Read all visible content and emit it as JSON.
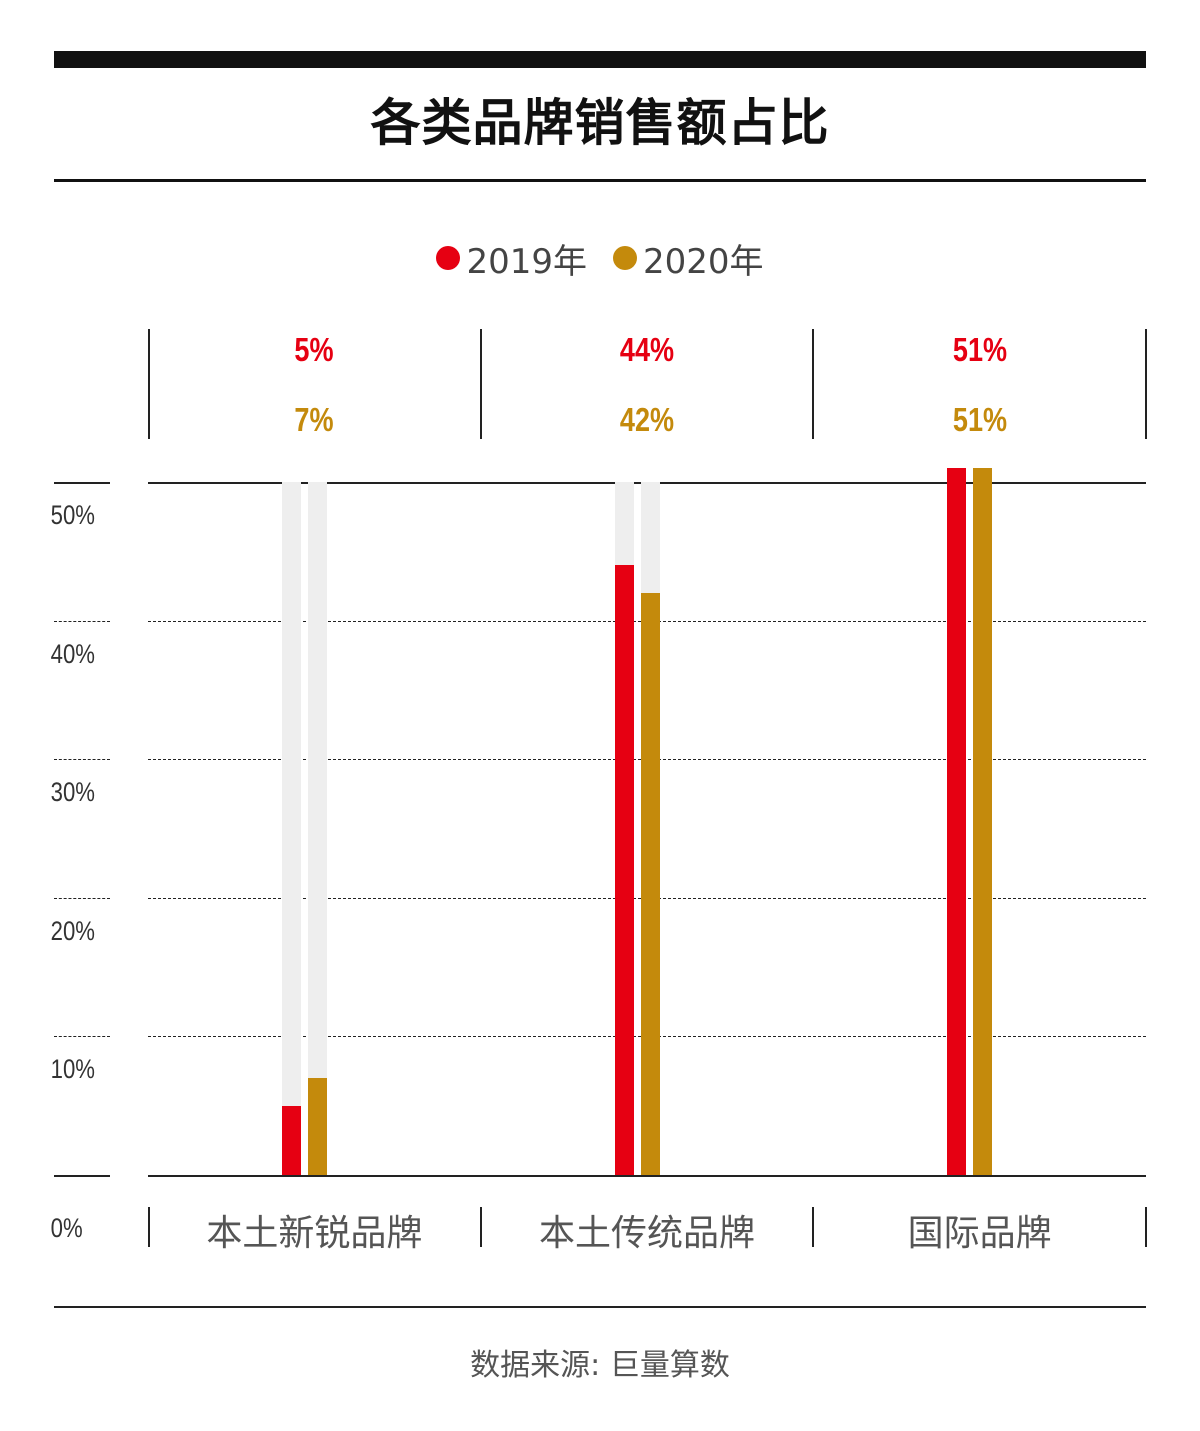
{
  "title": "各类品牌销售额占比",
  "legend": [
    {
      "label": "2019年",
      "color": "#e60012"
    },
    {
      "label": "2020年",
      "color": "#c48a0c"
    }
  ],
  "source": "数据来源: 巨量算数",
  "colors": {
    "track": "#eeeeee",
    "series_2019": "#e60012",
    "series_2020": "#c48a0c"
  },
  "chart_data": {
    "type": "bar",
    "title": "各类品牌销售额占比",
    "categories": [
      "本土新锐品牌",
      "本土传统品牌",
      "国际品牌"
    ],
    "series": [
      {
        "name": "2019年",
        "values": [
          5,
          44,
          51
        ],
        "labels": [
          "5%",
          "44%",
          "51%"
        ]
      },
      {
        "name": "2020年",
        "values": [
          7,
          42,
          51
        ],
        "labels": [
          "7%",
          "42%",
          "51%"
        ]
      }
    ],
    "y_ticks": [
      "0%",
      "10%",
      "20%",
      "30%",
      "40%",
      "50%"
    ],
    "ylim": [
      0,
      50
    ],
    "grid": true,
    "legend_position": "top-center"
  }
}
